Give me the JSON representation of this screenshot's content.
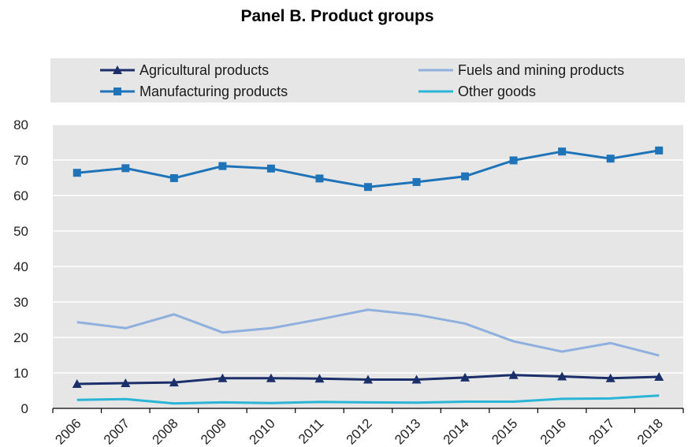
{
  "chart_data": {
    "type": "line",
    "title": "Panel B. Product groups",
    "xlabel": "",
    "ylabel": "",
    "x": [
      "2006",
      "2007",
      "2008",
      "2009",
      "2010",
      "2011",
      "2012",
      "2013",
      "2014",
      "2015",
      "2016",
      "2017",
      "2018"
    ],
    "ylim": [
      0,
      80
    ],
    "yticks": [
      0,
      10,
      20,
      30,
      40,
      50,
      60,
      70,
      80
    ],
    "grid": true,
    "legend_position": "top",
    "series": [
      {
        "name": "Agricultural products",
        "color": "#1b2f6b",
        "marker": "triangle",
        "values": [
          6.9,
          7.1,
          7.3,
          8.5,
          8.5,
          8.4,
          8.1,
          8.1,
          8.7,
          9.4,
          9.0,
          8.5,
          8.9
        ]
      },
      {
        "name": "Fuels and mining products",
        "color": "#8fb0de",
        "marker": "none",
        "values": [
          24.3,
          22.6,
          26.5,
          21.4,
          22.6,
          25.1,
          27.8,
          26.4,
          23.9,
          18.9,
          16.0,
          18.4,
          14.9
        ]
      },
      {
        "name": "Manufacturing products",
        "color": "#1f73b8",
        "marker": "square",
        "values": [
          66.4,
          67.7,
          64.9,
          68.3,
          67.6,
          64.8,
          62.4,
          63.8,
          65.4,
          69.9,
          72.4,
          70.4,
          72.7
        ]
      },
      {
        "name": "Other goods",
        "color": "#2ab4d6",
        "marker": "none",
        "values": [
          2.4,
          2.6,
          1.4,
          1.7,
          1.5,
          1.8,
          1.7,
          1.6,
          1.9,
          1.9,
          2.7,
          2.8,
          3.6
        ]
      }
    ]
  }
}
